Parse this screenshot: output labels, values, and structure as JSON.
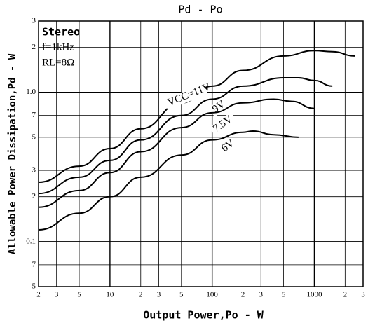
{
  "chart_data": {
    "type": "line",
    "title": "Pd - Po",
    "xlabel": "Output Power,Po - W",
    "ylabel": "Allowable Power Dissipation,Pd - W",
    "annotations": [
      "Stereo",
      "f=1kHz",
      "RL=8Ω"
    ],
    "xscale": "log",
    "yscale": "log",
    "grid": true,
    "xlim": [
      2,
      3000
    ],
    "ylim": [
      0.05,
      3
    ],
    "xticks": [
      2,
      3,
      5,
      10,
      {
        "value": 20,
        "label": "2"
      },
      {
        "value": 30,
        "label": "3"
      },
      {
        "value": 50,
        "label": "5"
      },
      100,
      {
        "value": 200,
        "label": "2"
      },
      {
        "value": 300,
        "label": "3"
      },
      {
        "value": 500,
        "label": "5"
      },
      1000,
      {
        "value": 2000,
        "label": "2"
      },
      {
        "value": 3000,
        "label": "3"
      }
    ],
    "yticks": [
      3,
      2,
      {
        "value": 1,
        "label": "1.0"
      },
      {
        "value": 0.7,
        "label": "7"
      },
      {
        "value": 0.5,
        "label": "5"
      },
      {
        "value": 0.3,
        "label": "3"
      },
      {
        "value": 0.2,
        "label": "2"
      },
      0.1,
      {
        "value": 0.07,
        "label": "7"
      },
      {
        "value": 0.05,
        "label": "5"
      }
    ],
    "series": [
      {
        "name": "VCC=11V",
        "color": "#000000",
        "x": [
          2,
          5,
          10,
          20,
          50,
          100,
          200,
          500,
          1000,
          1500,
          2500
        ],
        "values": [
          0.25,
          0.32,
          0.42,
          0.57,
          0.85,
          1.1,
          1.4,
          1.75,
          1.9,
          1.87,
          1.75
        ]
      },
      {
        "name": "9V",
        "color": "#000000",
        "x": [
          2,
          5,
          10,
          20,
          50,
          100,
          200,
          500,
          700,
          1000,
          1500
        ],
        "values": [
          0.21,
          0.27,
          0.35,
          0.48,
          0.7,
          0.9,
          1.1,
          1.25,
          1.25,
          1.2,
          1.1
        ]
      },
      {
        "name": "7.5V",
        "color": "#000000",
        "x": [
          2,
          5,
          10,
          20,
          50,
          100,
          200,
          400,
          600,
          1000
        ],
        "values": [
          0.17,
          0.22,
          0.29,
          0.4,
          0.58,
          0.73,
          0.85,
          0.9,
          0.87,
          0.78
        ]
      },
      {
        "name": "6V",
        "color": "#000000",
        "x": [
          2,
          5,
          10,
          20,
          50,
          100,
          200,
          250,
          400,
          700
        ],
        "values": [
          0.12,
          0.155,
          0.2,
          0.27,
          0.38,
          0.48,
          0.54,
          0.55,
          0.52,
          0.5
        ]
      }
    ]
  }
}
